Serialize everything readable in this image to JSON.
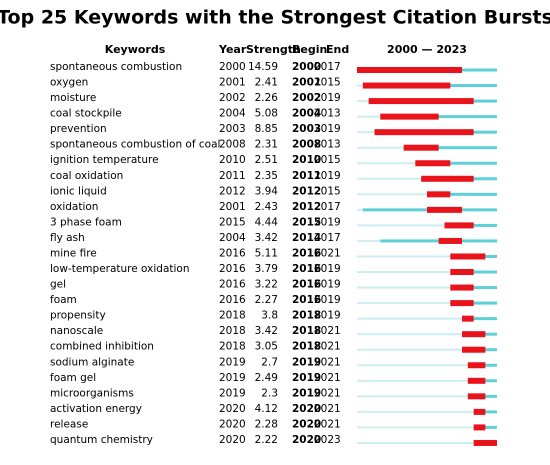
{
  "title": "Top 25 Keywords with the Strongest Citation Bursts",
  "columns": {
    "keyword": "Keywords",
    "year": "Year",
    "strength": "Strength",
    "begin": "Begin",
    "end": "End",
    "timeline": "2000 — 2023"
  },
  "timeline_range": [
    2000,
    2023
  ],
  "colors": {
    "base": "#5fd0d6",
    "faint": "#cdeef0",
    "burst": "#e8131b"
  },
  "rows": [
    {
      "keyword": "spontaneous combustion",
      "year": 2000,
      "strength": 14.59,
      "begin": 2000,
      "end": 2017
    },
    {
      "keyword": "oxygen",
      "year": 2001,
      "strength": 2.41,
      "begin": 2001,
      "end": 2015
    },
    {
      "keyword": "moisture",
      "year": 2002,
      "strength": 2.26,
      "begin": 2002,
      "end": 2019
    },
    {
      "keyword": "coal stockpile",
      "year": 2004,
      "strength": 5.08,
      "begin": 2004,
      "end": 2013
    },
    {
      "keyword": "prevention",
      "year": 2003,
      "strength": 8.85,
      "begin": 2003,
      "end": 2019
    },
    {
      "keyword": "spontaneous combustion of coal",
      "year": 2008,
      "strength": 2.31,
      "begin": 2008,
      "end": 2013
    },
    {
      "keyword": "ignition temperature",
      "year": 2010,
      "strength": 2.51,
      "begin": 2010,
      "end": 2015
    },
    {
      "keyword": "coal oxidation",
      "year": 2011,
      "strength": 2.35,
      "begin": 2011,
      "end": 2019
    },
    {
      "keyword": "ionic liquid",
      "year": 2012,
      "strength": 3.94,
      "begin": 2012,
      "end": 2015
    },
    {
      "keyword": "oxidation",
      "year": 2001,
      "strength": 2.43,
      "begin": 2012,
      "end": 2017
    },
    {
      "keyword": "3 phase foam",
      "year": 2015,
      "strength": 4.44,
      "begin": 2015,
      "end": 2019
    },
    {
      "keyword": "fly ash",
      "year": 2004,
      "strength": 3.42,
      "begin": 2014,
      "end": 2017
    },
    {
      "keyword": "mine fire",
      "year": 2016,
      "strength": 5.11,
      "begin": 2016,
      "end": 2021
    },
    {
      "keyword": "low-temperature oxidation",
      "year": 2016,
      "strength": 3.79,
      "begin": 2016,
      "end": 2019
    },
    {
      "keyword": "gel",
      "year": 2016,
      "strength": 3.22,
      "begin": 2016,
      "end": 2019
    },
    {
      "keyword": "foam",
      "year": 2016,
      "strength": 2.27,
      "begin": 2016,
      "end": 2019
    },
    {
      "keyword": "propensity",
      "year": 2018,
      "strength": 3.8,
      "begin": 2018,
      "end": 2019
    },
    {
      "keyword": "nanoscale",
      "year": 2018,
      "strength": 3.42,
      "begin": 2018,
      "end": 2021
    },
    {
      "keyword": "combined inhibition",
      "year": 2018,
      "strength": 3.05,
      "begin": 2018,
      "end": 2021
    },
    {
      "keyword": "sodium alginate",
      "year": 2019,
      "strength": 2.7,
      "begin": 2019,
      "end": 2021
    },
    {
      "keyword": "foam gel",
      "year": 2019,
      "strength": 2.49,
      "begin": 2019,
      "end": 2021
    },
    {
      "keyword": "microorganisms",
      "year": 2019,
      "strength": 2.3,
      "begin": 2019,
      "end": 2021
    },
    {
      "keyword": "activation energy",
      "year": 2020,
      "strength": 4.12,
      "begin": 2020,
      "end": 2021
    },
    {
      "keyword": "release",
      "year": 2020,
      "strength": 2.28,
      "begin": 2020,
      "end": 2021
    },
    {
      "keyword": "quantum chemistry",
      "year": 2020,
      "strength": 2.22,
      "begin": 2020,
      "end": 2023
    }
  ]
}
